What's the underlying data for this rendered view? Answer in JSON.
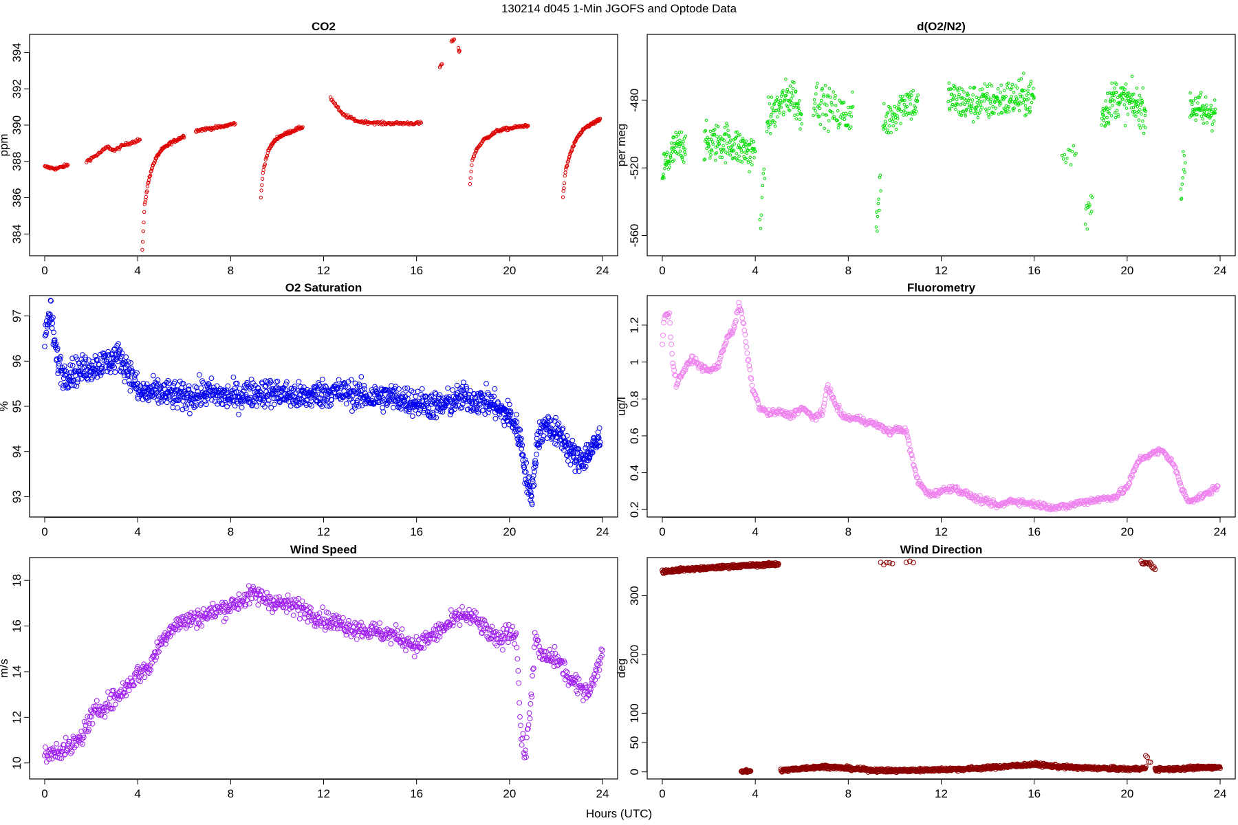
{
  "figure": {
    "title": "130214   d045   1-Min  JGOFS and Optode Data",
    "xlabel": "Hours (UTC)"
  },
  "chart_data": [
    {
      "id": "co2",
      "type": "scatter",
      "title": "CO2",
      "ylabel": "ppm",
      "xlim": [
        0,
        24
      ],
      "ylim": [
        382.8,
        395.0
      ],
      "xticks": [
        0,
        4,
        8,
        12,
        16,
        20,
        24
      ],
      "yticks": [
        384,
        386,
        388,
        390,
        392,
        394
      ],
      "color": "#dd0000",
      "size": 2.2,
      "noise": 0.06,
      "segments": [
        {
          "x": [
            0,
            0.5,
            1.0
          ],
          "y": [
            387.7,
            387.6,
            387.8
          ],
          "n": 35
        },
        {
          "x": [
            1.8,
            2.3,
            2.7,
            3.0,
            3.4,
            4.1
          ],
          "y": [
            388.0,
            388.4,
            388.8,
            388.6,
            388.9,
            389.2
          ],
          "n": 70
        },
        {
          "x": [
            4.2,
            4.3,
            4.45,
            4.6,
            4.8,
            5.0,
            5.4,
            6.0
          ],
          "y": [
            383.1,
            385.6,
            386.8,
            387.6,
            388.2,
            388.6,
            389.0,
            389.4
          ],
          "n": 90
        },
        {
          "x": [
            6.5,
            7.0,
            7.6,
            8.2
          ],
          "y": [
            389.7,
            389.8,
            389.9,
            390.1
          ],
          "n": 60
        },
        {
          "x": [
            9.3,
            9.4,
            9.55,
            9.7,
            10.0,
            10.5,
            11.1
          ],
          "y": [
            386.0,
            387.5,
            388.3,
            388.8,
            389.3,
            389.6,
            389.9
          ],
          "n": 80
        },
        {
          "x": [
            12.3,
            12.8,
            13.5,
            14.5,
            15.5,
            16.2
          ],
          "y": [
            391.5,
            390.6,
            390.2,
            390.1,
            390.1,
            390.1
          ],
          "n": 120
        },
        {
          "x": [
            17.0,
            17.1
          ],
          "y": [
            393.2,
            393.4
          ],
          "n": 4
        },
        {
          "x": [
            17.5,
            17.62
          ],
          "y": [
            394.6,
            394.7
          ],
          "n": 5
        },
        {
          "x": [
            17.8,
            17.85
          ],
          "y": [
            394.2,
            394.0
          ],
          "n": 4
        },
        {
          "x": [
            18.3,
            18.4,
            18.6,
            18.9,
            19.5,
            20.8
          ],
          "y": [
            386.8,
            388.1,
            388.7,
            389.2,
            389.7,
            390.0
          ],
          "n": 100
        },
        {
          "x": [
            22.3,
            22.4,
            22.6,
            22.9,
            23.3,
            23.9
          ],
          "y": [
            386.0,
            387.4,
            388.4,
            389.3,
            389.9,
            390.3
          ],
          "n": 80
        }
      ]
    },
    {
      "id": "o2n2",
      "type": "scatter",
      "title": "d(O2/N2)",
      "ylabel": "per meg",
      "xlim": [
        0,
        24
      ],
      "ylim": [
        -572,
        -441
      ],
      "xticks": [
        0,
        4,
        8,
        12,
        16,
        20,
        24
      ],
      "yticks": [
        -560,
        -520,
        -480
      ],
      "color": "#00dd00",
      "size": 1.8,
      "noise": 8,
      "segments": [
        {
          "x": [
            0,
            0.5,
            1.0
          ],
          "y": [
            -522,
            -510,
            -505
          ],
          "n": 70
        },
        {
          "x": [
            1.8,
            2.7,
            3.6,
            4.0
          ],
          "y": [
            -506,
            -504,
            -510,
            -512
          ],
          "n": 140
        },
        {
          "x": [
            4.2,
            4.4
          ],
          "y": [
            -545,
            -530
          ],
          "n": 8
        },
        {
          "x": [
            4.5,
            5.0,
            5.6,
            6.0
          ],
          "y": [
            -492,
            -484,
            -476,
            -490
          ],
          "n": 90
        },
        {
          "x": [
            6.5,
            7.2,
            8.0,
            8.2
          ],
          "y": [
            -478,
            -485,
            -490,
            -482
          ],
          "n": 80
        },
        {
          "x": [
            9.2,
            9.4
          ],
          "y": [
            -555,
            -530
          ],
          "n": 10
        },
        {
          "x": [
            9.5,
            10.0,
            10.5,
            11.0
          ],
          "y": [
            -495,
            -487,
            -480,
            -484
          ],
          "n": 80
        },
        {
          "x": [
            12.3,
            13.0,
            14.0,
            15.0,
            16.0
          ],
          "y": [
            -478,
            -482,
            -481,
            -479,
            -478
          ],
          "n": 220
        },
        {
          "x": [
            17.2,
            17.8
          ],
          "y": [
            -515,
            -510
          ],
          "n": 12
        },
        {
          "x": [
            18.2,
            18.5
          ],
          "y": [
            -550,
            -538
          ],
          "n": 12
        },
        {
          "x": [
            18.9,
            19.5,
            20.2,
            20.8
          ],
          "y": [
            -488,
            -478,
            -482,
            -486
          ],
          "n": 130
        },
        {
          "x": [
            22.3,
            22.5
          ],
          "y": [
            -535,
            -515
          ],
          "n": 10
        },
        {
          "x": [
            22.7,
            23.3,
            23.8
          ],
          "y": [
            -482,
            -488,
            -485
          ],
          "n": 70
        }
      ]
    },
    {
      "id": "o2sat",
      "type": "scatter",
      "title": "O2 Saturation",
      "ylabel": "%",
      "xlim": [
        0,
        24
      ],
      "ylim": [
        92.55,
        97.45
      ],
      "xticks": [
        0,
        4,
        8,
        12,
        16,
        20,
        24
      ],
      "yticks": [
        93,
        94,
        95,
        96,
        97
      ],
      "color": "#0000ee",
      "size": 3.4,
      "noise": 0.22,
      "segments": [
        {
          "x": [
            0,
            0.1,
            0.25,
            0.35,
            0.5,
            0.8,
            1.5,
            2.2,
            2.8,
            3.2,
            3.6,
            4.0
          ],
          "y": [
            96.4,
            96.8,
            97.1,
            96.7,
            96.1,
            95.7,
            95.8,
            95.9,
            96.0,
            96.1,
            95.8,
            95.4
          ],
          "n": 240
        },
        {
          "x": [
            4.0,
            5.0,
            6.0,
            7.0,
            8.0,
            9.0,
            10.0,
            11.0,
            12.0,
            13.0,
            14.0,
            15.0,
            16.0,
            17.0,
            18.0,
            19.0,
            19.5
          ],
          "y": [
            95.3,
            95.3,
            95.2,
            95.3,
            95.2,
            95.3,
            95.3,
            95.2,
            95.3,
            95.3,
            95.2,
            95.2,
            95.1,
            95.0,
            95.2,
            95.1,
            95.0
          ],
          "n": 900
        },
        {
          "x": [
            19.5,
            20.0,
            20.3,
            20.5,
            20.7,
            20.9,
            21.0,
            21.2,
            21.6,
            22.0,
            22.3,
            22.6,
            23.0,
            23.5,
            23.9
          ],
          "y": [
            94.9,
            94.8,
            94.5,
            94.2,
            93.5,
            93.0,
            93.2,
            94.3,
            94.6,
            94.4,
            94.3,
            94.0,
            93.8,
            94.0,
            94.3
          ],
          "n": 300
        }
      ]
    },
    {
      "id": "fluor",
      "type": "scatter",
      "title": "Fluorometry",
      "ylabel": "ug/l",
      "xlim": [
        0,
        24
      ],
      "ylim": [
        0.16,
        1.36
      ],
      "xticks": [
        0,
        4,
        8,
        12,
        16,
        20,
        24
      ],
      "yticks": [
        0.2,
        0.4,
        0.6,
        0.8,
        1.0,
        1.2
      ],
      "color": "#ee82ee",
      "size": 3.4,
      "noise": 0.012,
      "segments": [
        {
          "x": [
            0,
            0.1,
            0.3,
            0.45,
            0.6,
            0.9,
            1.3,
            1.6,
            2.0,
            2.4,
            2.8,
            3.1,
            3.3,
            3.5,
            3.7,
            3.9,
            4.2,
            4.6,
            5.0,
            5.5,
            6.0,
            6.5,
            6.9,
            7.1,
            7.4,
            7.8,
            8.5,
            9.2,
            9.8,
            10.2,
            10.5,
            10.8,
            11.0,
            11.5,
            12.0,
            12.5,
            13.0,
            13.5,
            14.0,
            14.5,
            15.0,
            15.5,
            16.0,
            16.5,
            17.0,
            17.5,
            18.0,
            18.5,
            19.0,
            19.5,
            20.0,
            20.5,
            21.0,
            21.5,
            22.0,
            22.3,
            22.6,
            23.0,
            23.5,
            23.9
          ],
          "y": [
            1.1,
            1.27,
            1.25,
            1.0,
            0.88,
            0.95,
            1.02,
            0.98,
            0.95,
            0.98,
            1.14,
            1.18,
            1.32,
            1.2,
            1.0,
            0.85,
            0.75,
            0.72,
            0.73,
            0.71,
            0.75,
            0.7,
            0.72,
            0.88,
            0.78,
            0.7,
            0.69,
            0.66,
            0.62,
            0.64,
            0.62,
            0.45,
            0.35,
            0.28,
            0.3,
            0.32,
            0.29,
            0.26,
            0.24,
            0.22,
            0.25,
            0.24,
            0.23,
            0.22,
            0.21,
            0.22,
            0.24,
            0.25,
            0.26,
            0.27,
            0.32,
            0.47,
            0.5,
            0.52,
            0.45,
            0.33,
            0.25,
            0.26,
            0.29,
            0.33
          ],
          "n": 800
        }
      ]
    },
    {
      "id": "wspd",
      "type": "scatter",
      "title": "Wind Speed",
      "ylabel": "m/s",
      "xlim": [
        0,
        24
      ],
      "ylim": [
        9.3,
        19.0
      ],
      "xticks": [
        0,
        4,
        8,
        12,
        16,
        20,
        24
      ],
      "yticks": [
        10,
        12,
        14,
        16,
        18
      ],
      "color": "#a020f0",
      "size": 3.4,
      "noise": 0.3,
      "segments": [
        {
          "x": [
            0,
            0.5,
            1.0,
            1.5,
            2.0,
            2.5,
            3.0,
            3.5,
            4.0,
            4.5,
            5.0,
            5.5,
            6.0,
            7.0,
            8.0,
            9.0,
            9.5,
            10.0,
            11.0,
            12.0,
            13.0,
            14.0,
            15.0,
            15.5,
            16.0,
            17.0,
            18.0,
            18.5,
            19.0,
            19.5,
            20.0,
            20.3,
            20.5,
            20.7,
            20.9,
            21.1,
            21.3,
            21.5,
            22.0,
            22.3,
            22.6,
            23.0,
            23.4,
            23.7,
            24.0
          ],
          "y": [
            10.2,
            10.6,
            10.6,
            11.0,
            12.0,
            12.5,
            12.8,
            13.3,
            13.9,
            14.2,
            15.3,
            16.0,
            16.2,
            16.5,
            16.9,
            17.4,
            17.2,
            17.0,
            16.8,
            16.3,
            16.0,
            15.8,
            15.6,
            15.4,
            15.1,
            15.8,
            16.5,
            16.3,
            15.8,
            15.3,
            15.8,
            15.6,
            11.0,
            10.4,
            12.5,
            15.5,
            14.8,
            14.6,
            14.6,
            14.2,
            13.6,
            13.3,
            13.2,
            13.8,
            15.0
          ],
          "n": 900
        }
      ]
    },
    {
      "id": "wdir",
      "type": "scatter",
      "title": "Wind Direction",
      "ylabel": "deg",
      "xlim": [
        0,
        24
      ],
      "ylim": [
        -12,
        365
      ],
      "xticks": [
        0,
        4,
        8,
        12,
        16,
        20,
        24
      ],
      "yticks": [
        0,
        50,
        100,
        200,
        300
      ],
      "color": "#8b0000",
      "size": 3.4,
      "noise": 2.0,
      "segments": [
        {
          "x": [
            0,
            1.0,
            2.0,
            3.0,
            4.0,
            5.0
          ],
          "y": [
            341,
            345,
            347,
            350,
            352,
            354
          ],
          "n": 300
        },
        {
          "x": [
            3.4,
            3.8
          ],
          "y": [
            1,
            1
          ],
          "n": 25
        },
        {
          "x": [
            5.1,
            6.0,
            7.0,
            8.0,
            9.0,
            10.0,
            11.0,
            12.0,
            13.0,
            14.0,
            15.0,
            16.0,
            17.0,
            18.0,
            19.0,
            20.0,
            20.8
          ],
          "y": [
            2,
            6,
            9,
            6,
            3,
            2,
            3,
            4,
            5,
            7,
            10,
            13,
            9,
            7,
            6,
            5,
            6
          ],
          "n": 900
        },
        {
          "x": [
            9.4,
            9.9
          ],
          "y": [
            356,
            356
          ],
          "n": 5
        },
        {
          "x": [
            10.5,
            10.8
          ],
          "y": [
            356,
            356
          ],
          "n": 3
        },
        {
          "x": [
            20.6,
            21.0,
            21.2
          ],
          "y": [
            356,
            355,
            345
          ],
          "n": 15
        },
        {
          "x": [
            20.8,
            21.0
          ],
          "y": [
            27,
            15
          ],
          "n": 4
        },
        {
          "x": [
            21.2,
            22.0,
            23.0,
            24.0
          ],
          "y": [
            4,
            5,
            7,
            8
          ],
          "n": 200
        }
      ]
    }
  ]
}
